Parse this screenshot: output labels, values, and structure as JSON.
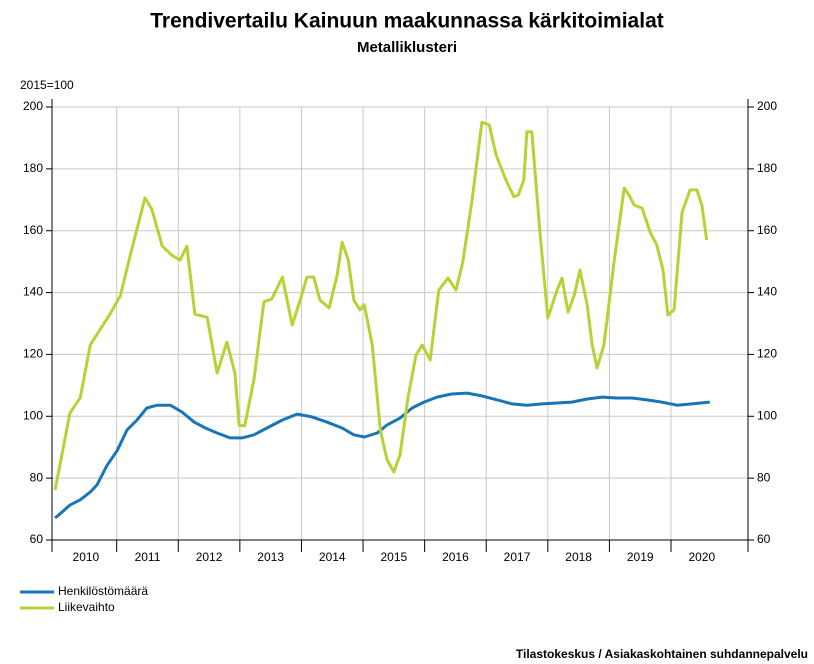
{
  "chart_data": {
    "type": "line",
    "title": "Trendivertailu Kainuun maakunnassa kärkitoimialat",
    "subtitle": "Metalliklusteri",
    "y_label": "2015=100",
    "source": "Tilastokeskus / Asiakaskohtainen suhdannepalvelu",
    "xlim": [
      2009.95,
      2021.25
    ],
    "xticks": [
      {
        "value": 2010.5,
        "label": "2010"
      },
      {
        "value": 2011.5,
        "label": "2011"
      },
      {
        "value": 2012.5,
        "label": "2012"
      },
      {
        "value": 2013.5,
        "label": "2013"
      },
      {
        "value": 2014.5,
        "label": "2014"
      },
      {
        "value": 2015.5,
        "label": "2015"
      },
      {
        "value": 2016.5,
        "label": "2016"
      },
      {
        "value": 2017.5,
        "label": "2017"
      },
      {
        "value": 2018.5,
        "label": "2018"
      },
      {
        "value": 2019.5,
        "label": "2019"
      },
      {
        "value": 2020.5,
        "label": "2020"
      }
    ],
    "xgrid": [
      2011,
      2012,
      2013,
      2014,
      2015,
      2016,
      2017,
      2018,
      2019,
      2020
    ],
    "ylim": [
      60,
      200
    ],
    "yticks": [
      60,
      80,
      100,
      120,
      140,
      160,
      180,
      200
    ],
    "y2lim": [
      60,
      200
    ],
    "y2ticks": [
      60,
      80,
      100,
      120,
      140,
      160,
      180,
      200
    ],
    "grid": true,
    "legend": "bottom-left",
    "series": [
      {
        "name": "Henkilöstömäärä",
        "color": "#1a75b5",
        "x": [
          2010.0,
          2010.11,
          2010.24,
          2010.41,
          2010.57,
          2010.68,
          2010.84,
          2011.01,
          2011.17,
          2011.33,
          2011.49,
          2011.66,
          2011.87,
          2012.06,
          2012.26,
          2012.44,
          2012.63,
          2012.84,
          2013.04,
          2013.23,
          2013.44,
          2013.69,
          2013.93,
          2014.17,
          2014.42,
          2014.66,
          2014.85,
          2015.02,
          2015.23,
          2015.39,
          2015.6,
          2015.8,
          2015.99,
          2016.2,
          2016.44,
          2016.69,
          2016.93,
          2017.18,
          2017.42,
          2017.66,
          2017.91,
          2018.15,
          2018.39,
          2018.64,
          2018.88,
          2019.12,
          2019.37,
          2019.61,
          2019.85,
          2020.1,
          2020.34,
          2020.63
        ],
        "values": [
          67.1,
          69,
          71.3,
          73,
          75.5,
          77.8,
          84,
          89,
          95.6,
          98.8,
          102.7,
          103.6,
          103.6,
          101.4,
          98.1,
          96.2,
          94.6,
          93,
          93,
          94,
          96.2,
          98.8,
          100.7,
          99.8,
          98.1,
          96.2,
          94,
          93.3,
          94.6,
          97.2,
          99.4,
          102.7,
          104.6,
          106.2,
          107.2,
          107.5,
          106.6,
          105.3,
          104,
          103.6,
          104,
          104.3,
          104.6,
          105.6,
          106.2,
          105.9,
          105.9,
          105.3,
          104.6,
          103.6,
          104,
          104.6
        ]
      },
      {
        "name": "Liikevaihto",
        "color": "#b5d334",
        "x": [
          2010.0,
          2010.11,
          2010.24,
          2010.41,
          2010.57,
          2010.73,
          2010.89,
          2011.06,
          2011.22,
          2011.46,
          2011.57,
          2011.74,
          2011.9,
          2012.03,
          2012.14,
          2012.27,
          2012.47,
          2012.63,
          2012.79,
          2012.92,
          2012.99,
          2013.08,
          2013.23,
          2013.39,
          2013.52,
          2013.69,
          2013.85,
          2013.98,
          2014.09,
          2014.2,
          2014.3,
          2014.45,
          2014.58,
          2014.66,
          2014.76,
          2014.85,
          2014.95,
          2015.02,
          2015.15,
          2015.28,
          2015.39,
          2015.5,
          2015.6,
          2015.73,
          2015.86,
          2015.96,
          2016.09,
          2016.23,
          2016.38,
          2016.51,
          2016.62,
          2016.77,
          2016.93,
          2017.05,
          2017.16,
          2017.32,
          2017.45,
          2017.52,
          2017.61,
          2017.66,
          2017.74,
          2017.87,
          2018.0,
          2018.15,
          2018.23,
          2018.33,
          2018.43,
          2018.52,
          2018.64,
          2018.72,
          2018.8,
          2018.91,
          2019.08,
          2019.24,
          2019.32,
          2019.4,
          2019.53,
          2019.66,
          2019.77,
          2019.87,
          2019.95,
          2020.05,
          2020.18,
          2020.31,
          2020.42,
          2020.5,
          2020.58
        ],
        "values": [
          76.2,
          87.5,
          101,
          106,
          123,
          128,
          133,
          139,
          152,
          170.6,
          167,
          155,
          152,
          150.5,
          155,
          133,
          132,
          114,
          124,
          114,
          97,
          97,
          112,
          137,
          138,
          145,
          129.5,
          137.6,
          145,
          145,
          137.6,
          135,
          145.7,
          156.3,
          150.5,
          137.6,
          134.4,
          136,
          123,
          95.6,
          85.9,
          82,
          87.5,
          106,
          119.8,
          123,
          118.2,
          140.8,
          144.7,
          140.8,
          149.9,
          170,
          195.1,
          194.2,
          184.5,
          176.4,
          171,
          171.5,
          176.4,
          192,
          192,
          160,
          131.8,
          140.8,
          144.7,
          133.7,
          139.2,
          147.3,
          136,
          123,
          115.6,
          123,
          150.5,
          173.8,
          171.5,
          168.3,
          167.3,
          159.6,
          155.4,
          147.3,
          132.7,
          134.4,
          166,
          173.2,
          173.2,
          168.3,
          157
        ]
      }
    ]
  }
}
